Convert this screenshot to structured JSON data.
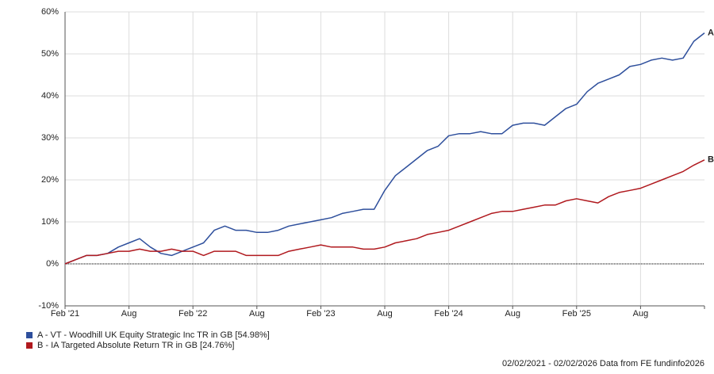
{
  "chart_data": {
    "type": "line",
    "categories": [
      "Feb '21",
      null,
      null,
      null,
      null,
      null,
      "Aug",
      null,
      null,
      null,
      null,
      null,
      "Feb '22",
      null,
      null,
      null,
      null,
      null,
      "Aug",
      null,
      null,
      null,
      null,
      null,
      "Feb '23",
      null,
      null,
      null,
      null,
      null,
      "Aug",
      null,
      null,
      null,
      null,
      null,
      "Feb '24",
      null,
      null,
      null,
      null,
      null,
      "Aug",
      null,
      null,
      null,
      null,
      null,
      "Feb '25",
      null,
      null,
      null,
      null,
      null,
      "Aug",
      null,
      null,
      null,
      null,
      null,
      null
    ],
    "series": [
      {
        "name": "A - VT - Woodhill UK Equity Strategic Inc TR in GB [54.98%]",
        "end_label": "A",
        "color": "#2e4f9c",
        "values": [
          0,
          1,
          2,
          2,
          2.5,
          4,
          5,
          6,
          4,
          2.5,
          2,
          3,
          4,
          5,
          8,
          9,
          8,
          8,
          7.5,
          7.5,
          8,
          9,
          9.5,
          10,
          10.5,
          11,
          12,
          12.5,
          13,
          13,
          17.5,
          21,
          23,
          25,
          27,
          28,
          30.5,
          31,
          31,
          31.5,
          31,
          31,
          33,
          33.5,
          33.5,
          33,
          35,
          37,
          38,
          41,
          43,
          44,
          45,
          47,
          47.5,
          48.5,
          49,
          48.5,
          49,
          53,
          54.98
        ]
      },
      {
        "name": "B - IA Targeted Absolute Return TR in GB [24.76%]",
        "end_label": "B",
        "color": "#b0191e",
        "values": [
          0,
          1,
          2,
          2,
          2.5,
          3,
          3,
          3.5,
          3,
          3,
          3.5,
          3,
          3,
          2,
          3,
          3,
          3,
          2,
          2,
          2,
          2,
          3,
          3.5,
          4,
          4.5,
          4,
          4,
          4,
          3.5,
          3.5,
          4,
          5,
          5.5,
          6,
          7,
          7.5,
          8,
          9,
          10,
          11,
          12,
          12.5,
          12.5,
          13,
          13.5,
          14,
          14,
          15,
          15.5,
          15,
          14.5,
          16,
          17,
          17.5,
          18,
          19,
          20,
          21,
          22,
          23.5,
          24.76
        ]
      }
    ],
    "ylim": [
      -10,
      60
    ],
    "yticks": [
      {
        "value": -10,
        "label": "-10%"
      },
      {
        "value": 0,
        "label": "0%"
      },
      {
        "value": 10,
        "label": "10%"
      },
      {
        "value": 20,
        "label": "20%"
      },
      {
        "value": 30,
        "label": "30%"
      },
      {
        "value": 40,
        "label": "40%"
      },
      {
        "value": 50,
        "label": "50%"
      },
      {
        "value": 60,
        "label": "60%"
      }
    ],
    "grid": true,
    "footer": "02/02/2021 - 02/02/2026 Data from FE fundinfo2026"
  }
}
